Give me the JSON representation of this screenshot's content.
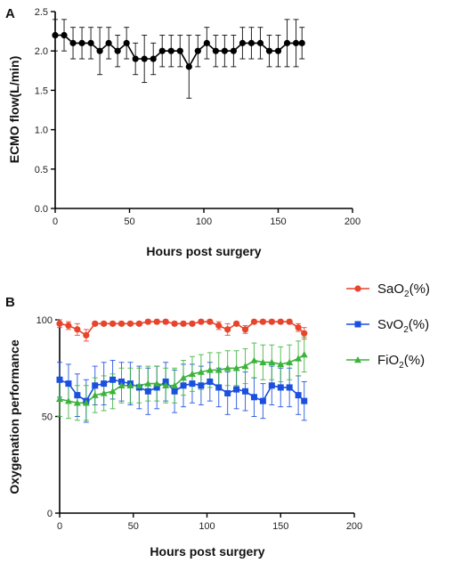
{
  "chart_data": [
    {
      "panel_label": "A",
      "type": "line",
      "xlabel": "Hours post surgery",
      "ylabel": "ECMO flow(L/min)",
      "xlim": [
        0,
        200
      ],
      "ylim": [
        0.0,
        2.5
      ],
      "xticks": [
        "0",
        "50",
        "100",
        "150",
        "200"
      ],
      "yticks": [
        "0.0",
        "0.5",
        "1.0",
        "1.5",
        "2.0",
        "2.5"
      ],
      "grid": false,
      "series": [
        {
          "color": "#000000",
          "marker": "circle",
          "x": [
            0,
            6,
            12,
            18,
            24,
            30,
            36,
            42,
            48,
            54,
            60,
            66,
            72,
            78,
            84,
            90,
            96,
            102,
            108,
            114,
            120,
            126,
            132,
            138,
            144,
            150,
            156,
            162,
            166
          ],
          "y": [
            2.2,
            2.2,
            2.1,
            2.1,
            2.1,
            2.0,
            2.1,
            2.0,
            2.1,
            1.9,
            1.9,
            1.9,
            2.0,
            2.0,
            2.0,
            1.8,
            2.0,
            2.1,
            2.0,
            2.0,
            2.0,
            2.1,
            2.1,
            2.1,
            2.0,
            2.0,
            2.1,
            2.1,
            2.1
          ],
          "err": [
            0.2,
            0.2,
            0.2,
            0.2,
            0.2,
            0.3,
            0.2,
            0.2,
            0.2,
            0.2,
            0.3,
            0.2,
            0.2,
            0.2,
            0.2,
            0.4,
            0.2,
            0.2,
            0.2,
            0.2,
            0.2,
            0.2,
            0.2,
            0.2,
            0.2,
            0.2,
            0.3,
            0.3,
            0.2
          ]
        }
      ]
    },
    {
      "panel_label": "B",
      "type": "line",
      "xlabel": "Hours post surgery",
      "ylabel": "Oxygenation performance",
      "xlim": [
        0,
        200
      ],
      "ylim": [
        0,
        100
      ],
      "xticks": [
        "0",
        "50",
        "100",
        "150",
        "200"
      ],
      "yticks": [
        "0",
        "50",
        "100"
      ],
      "grid": false,
      "legend_position": "right",
      "series": [
        {
          "name_base": "SaO",
          "name_sub": "2",
          "name_tail": "(%)",
          "color": "#e8442c",
          "marker": "circle",
          "x": [
            0,
            6,
            12,
            18,
            24,
            30,
            36,
            42,
            48,
            54,
            60,
            66,
            72,
            78,
            84,
            90,
            96,
            102,
            108,
            114,
            120,
            126,
            132,
            138,
            144,
            150,
            156,
            162,
            166
          ],
          "y": [
            98,
            97,
            95,
            92,
            98,
            98,
            98,
            98,
            98,
            98,
            99,
            99,
            99,
            98,
            98,
            98,
            99,
            99,
            97,
            95,
            98,
            95,
            99,
            99,
            99,
            99,
            99,
            96,
            93
          ],
          "err": [
            2,
            2,
            3,
            3,
            1,
            1,
            1,
            1,
            1,
            1,
            1,
            1,
            1,
            1,
            1,
            1,
            1,
            1,
            2,
            3,
            1,
            2,
            1,
            1,
            1,
            1,
            1,
            2,
            3
          ]
        },
        {
          "name_base": "SvO",
          "name_sub": "2",
          "name_tail": "(%)",
          "color": "#1a4fe0",
          "marker": "square",
          "x": [
            0,
            6,
            12,
            18,
            24,
            30,
            36,
            42,
            48,
            54,
            60,
            66,
            72,
            78,
            84,
            90,
            96,
            102,
            108,
            114,
            120,
            126,
            132,
            138,
            144,
            150,
            156,
            162,
            166
          ],
          "y": [
            69,
            67,
            61,
            58,
            66,
            67,
            69,
            68,
            67,
            65,
            63,
            65,
            68,
            63,
            66,
            67,
            66,
            68,
            65,
            62,
            64,
            63,
            60,
            58,
            66,
            65,
            65,
            61,
            58
          ],
          "err": [
            9,
            10,
            11,
            11,
            10,
            11,
            10,
            10,
            11,
            11,
            12,
            11,
            10,
            11,
            11,
            10,
            10,
            10,
            10,
            11,
            10,
            10,
            10,
            9,
            10,
            10,
            10,
            10,
            10
          ]
        },
        {
          "name_base": "FiO",
          "name_sub": "2",
          "name_tail": "(%)",
          "color": "#3cb43c",
          "marker": "triangle",
          "x": [
            0,
            6,
            12,
            18,
            24,
            30,
            36,
            42,
            48,
            54,
            60,
            66,
            72,
            78,
            84,
            90,
            96,
            102,
            108,
            114,
            120,
            126,
            132,
            138,
            144,
            150,
            156,
            162,
            166
          ],
          "y": [
            59,
            58,
            57,
            57,
            61,
            62,
            63,
            66,
            66,
            66,
            67,
            67,
            66,
            66,
            70,
            72,
            73,
            74,
            74,
            75,
            75,
            76,
            79,
            78,
            78,
            77,
            78,
            80,
            82
          ],
          "err": [
            9,
            9,
            9,
            9,
            9,
            9,
            9,
            9,
            9,
            9,
            9,
            9,
            9,
            9,
            9,
            9,
            9,
            9,
            9,
            9,
            9,
            9,
            9,
            9,
            9,
            9,
            9,
            9,
            9
          ]
        }
      ]
    }
  ]
}
